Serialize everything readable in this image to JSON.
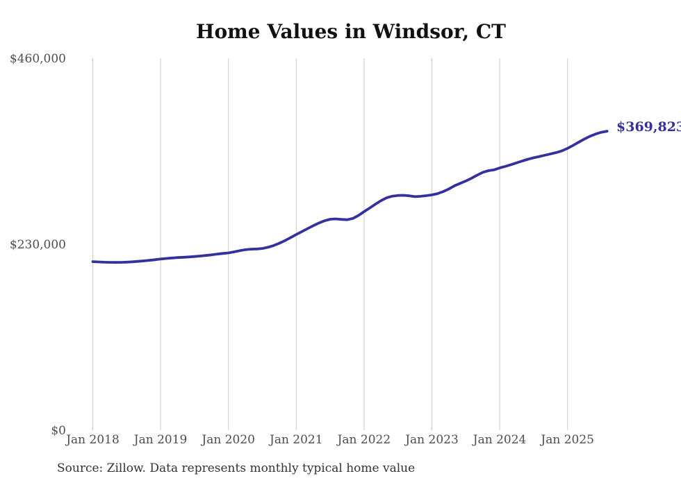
{
  "title": "Home Values in Windsor, CT",
  "source_note": "Source: Zillow. Data represents monthly typical home value",
  "current_value_label": "$369,823",
  "colors": {
    "line": "#34309e",
    "label": "#332f9e",
    "gridline": "#cccccc",
    "title": "#111111",
    "axis_text": "#4d4d4d",
    "source_text": "#333333",
    "bg": "#ffffff"
  },
  "chart_data": {
    "type": "line",
    "title": "Home Values in Windsor, CT",
    "xlabel": "",
    "ylabel": "",
    "ylim": [
      0,
      460000
    ],
    "grid": "vertical-only",
    "legend": "none",
    "frequency": "monthly",
    "x_start": "2018-01",
    "x_end": "2025-08",
    "x_tick_labels": [
      "Jan 2018",
      "Jan 2019",
      "Jan 2020",
      "Jan 2021",
      "Jan 2022",
      "Jan 2023",
      "Jan 2024",
      "Jan 2025"
    ],
    "y_ticks": [
      {
        "label": "$460,000",
        "value": 460000
      },
      {
        "label": "$230,000",
        "value": 230000
      },
      {
        "label": "$0",
        "value": 0
      }
    ],
    "final_value": 369823,
    "final_value_label": "$369,823",
    "series": [
      {
        "name": "Typical home value",
        "values": [
          208500,
          208100,
          207800,
          207600,
          207500,
          207600,
          207900,
          208300,
          208800,
          209400,
          210100,
          210900,
          211700,
          212400,
          213000,
          213500,
          213900,
          214300,
          214800,
          215400,
          216100,
          216900,
          217800,
          218600,
          219300,
          220600,
          222000,
          223200,
          223900,
          224200,
          224800,
          226200,
          228400,
          231200,
          234500,
          238200,
          242000,
          245600,
          249300,
          252900,
          256200,
          259000,
          260900,
          261300,
          260700,
          260300,
          261800,
          265500,
          270300,
          274800,
          279500,
          283900,
          287400,
          289500,
          290300,
          290500,
          289900,
          288900,
          289300,
          290100,
          291000,
          292600,
          295100,
          298400,
          302300,
          305300,
          308200,
          311600,
          315500,
          318900,
          321000,
          322000,
          324400,
          326300,
          328400,
          330700,
          333000,
          335100,
          336900,
          338500,
          340100,
          341700,
          343400,
          345500,
          348600,
          352300,
          356300,
          360200,
          363600,
          366400,
          368500,
          369823
        ]
      }
    ]
  }
}
